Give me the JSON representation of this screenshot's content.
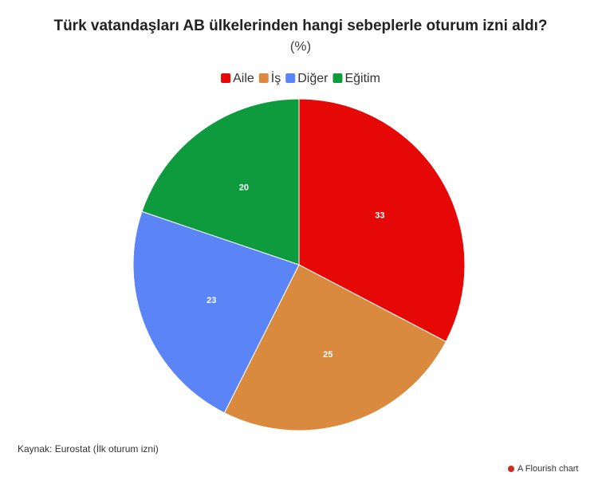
{
  "chart_data": {
    "type": "pie",
    "title": "Türk vatandaşları AB ülkelerinden hangi sebeplerle oturum izni aldı?",
    "subtitle": "(%)",
    "categories": [
      "Aile",
      "İş",
      "Diğer",
      "Eğitim"
    ],
    "values": [
      33,
      25,
      23,
      20
    ],
    "colors": [
      "#e60707",
      "#d98a3e",
      "#5b84f6",
      "#0e9b3d"
    ],
    "legend": "top",
    "source": "Kaynak: Eurostat (İlk oturum izni)",
    "credit": "A Flourish chart"
  }
}
